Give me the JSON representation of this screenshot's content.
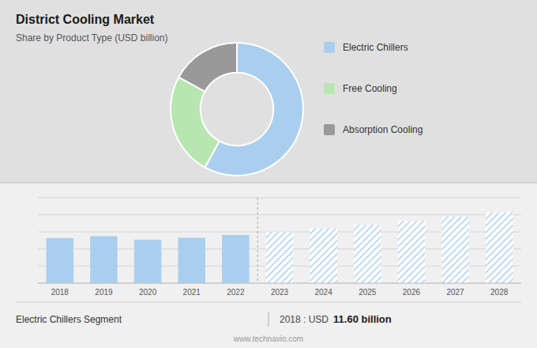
{
  "chart_data": [
    {
      "type": "pie",
      "title": "District Cooling Market",
      "subtitle": "Share by Product Type (USD billion)",
      "categories": [
        "Electric Chillers",
        "Free Cooling",
        "Absorption Cooling"
      ],
      "values": [
        58,
        25,
        17
      ],
      "colors": [
        "#aacfee",
        "#b8e6b0",
        "#999999"
      ],
      "legend": "right"
    },
    {
      "type": "bar",
      "categories": [
        "2018",
        "2019",
        "2020",
        "2021",
        "2022",
        "2023",
        "2024",
        "2025",
        "2026",
        "2027",
        "2028"
      ],
      "series": [
        {
          "color": "#aacfee",
          "values": [
            11.6,
            12.1,
            11.2,
            11.7,
            12.4,
            null,
            null,
            null,
            null,
            null,
            null
          ]
        },
        {
          "color": "#aacfee",
          "values": [
            null,
            null,
            null,
            null,
            null,
            13.2,
            14.1,
            15.0,
            16.0,
            17.1,
            18.3
          ]
        }
      ],
      "ylim": [
        0,
        22
      ],
      "yticks": [
        0,
        4.4,
        8.8,
        13.2,
        17.6,
        22
      ],
      "grid": true,
      "tick_labels": "x",
      "annotations": [
        "Electric Chillers Segment",
        "2018 : USD",
        "11.60 billion",
        "www.technavio.com"
      ]
    }
  ]
}
